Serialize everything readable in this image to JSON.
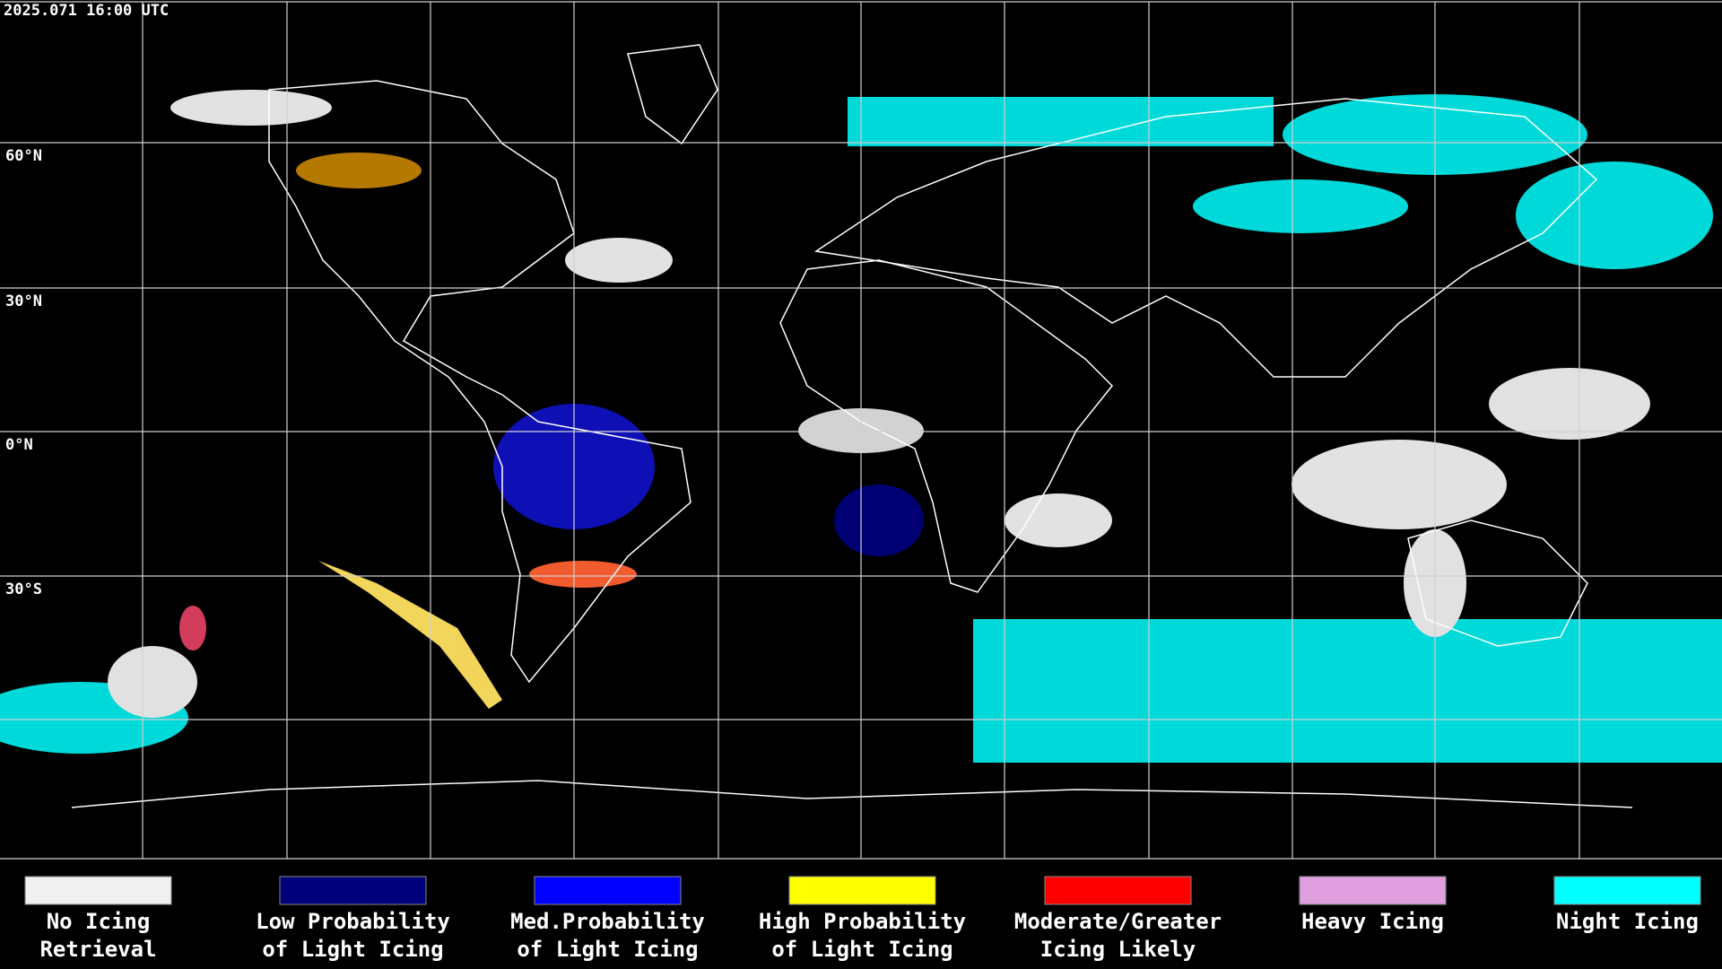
{
  "timestamp": "2025.071 16:00 UTC",
  "latitude_labels": [
    "60°N",
    "30°N",
    "0°N",
    "30°S"
  ],
  "legend": [
    {
      "lines": [
        "No Icing",
        "Retrieval"
      ],
      "color": "#f0f0f0"
    },
    {
      "lines": [
        "Low Probability",
        "of Light Icing"
      ],
      "color": "#00007a"
    },
    {
      "lines": [
        "Med.Probability",
        "of Light Icing"
      ],
      "color": "#0000ff"
    },
    {
      "lines": [
        "High Probability",
        "of Light Icing"
      ],
      "color": "#ffff00"
    },
    {
      "lines": [
        "Moderate/Greater",
        "Icing Likely"
      ],
      "color": "#ff0000"
    },
    {
      "lines": [
        "Heavy Icing"
      ],
      "color": "#e0a0e0"
    },
    {
      "lines": [
        "Night Icing"
      ],
      "color": "#00ffff"
    }
  ]
}
